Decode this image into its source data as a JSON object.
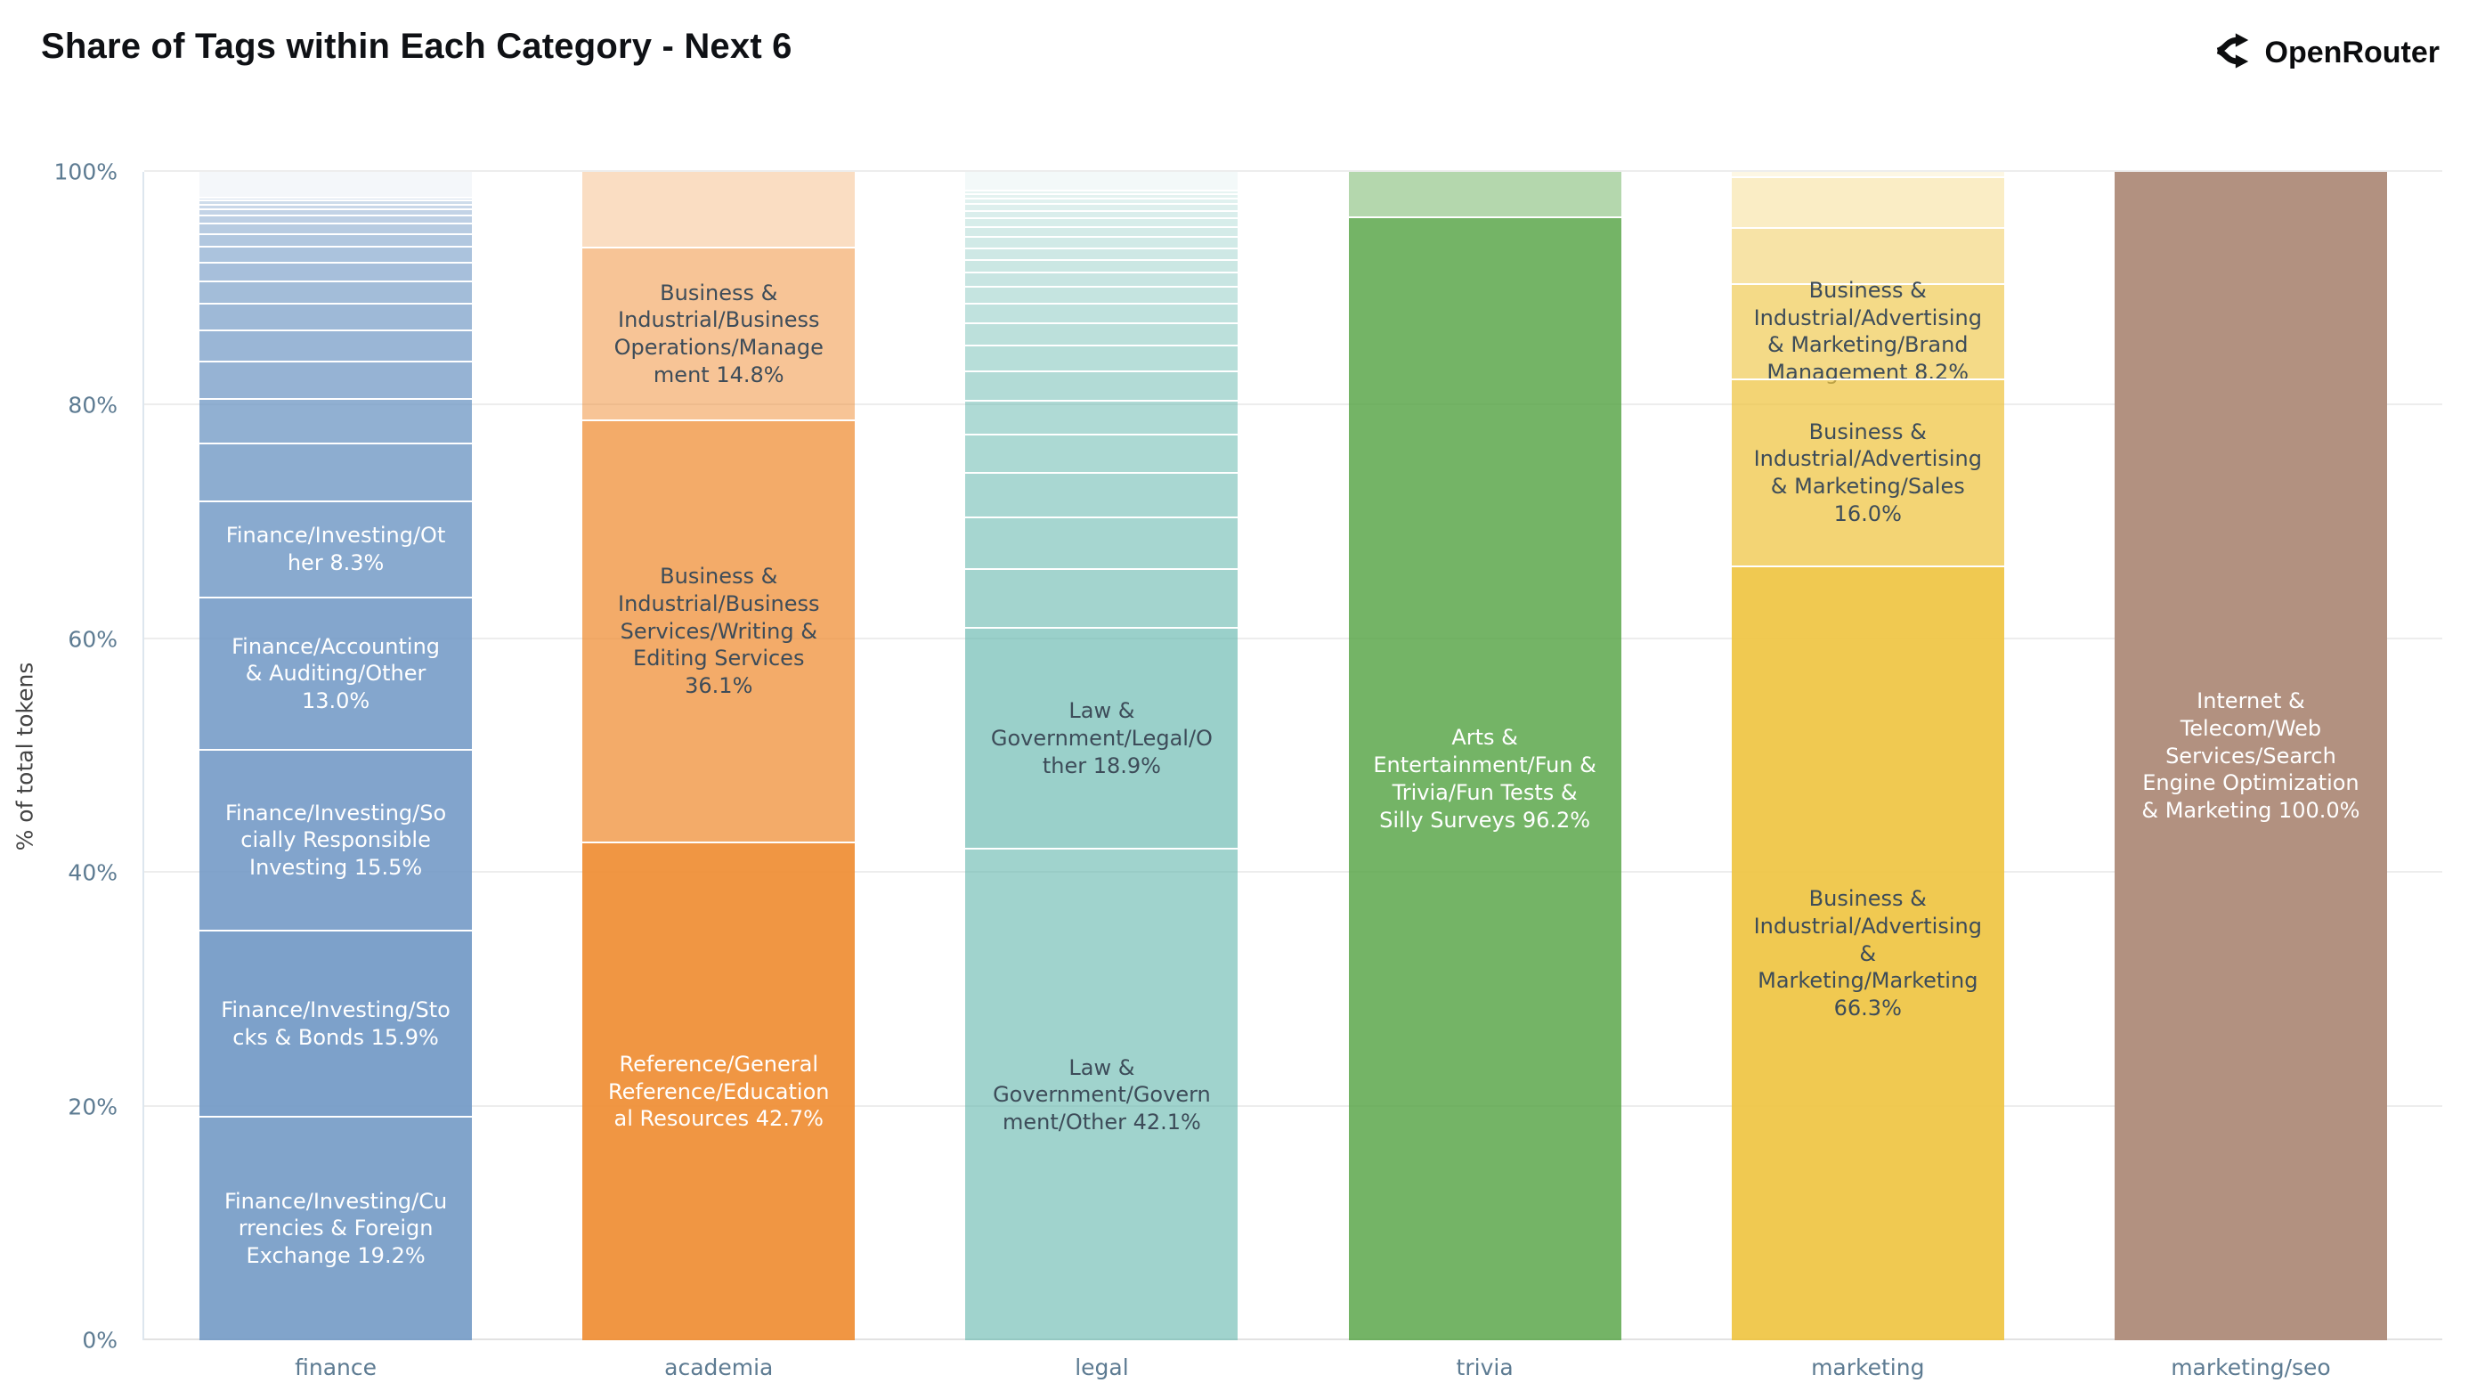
{
  "header": {
    "title": "Share of Tags within Each Category - Next 6",
    "brand": {
      "name": "OpenRouter",
      "icon": "openrouter-fork-icon"
    }
  },
  "chart_data": {
    "type": "bar",
    "variant": "stacked-100-percent",
    "title": "Share of Tags within Each Category - Next 6",
    "xlabel": "",
    "ylabel": "% of total tokens",
    "ylim": [
      0,
      100
    ],
    "yticks": [
      0,
      20,
      40,
      60,
      80,
      100
    ],
    "ytick_labels": [
      "0%",
      "20%",
      "40%",
      "60%",
      "80%",
      "100%"
    ],
    "grid": true,
    "legend_position": "none",
    "colors": {
      "axis_text": "#5d7b92",
      "axis_title": "#444444",
      "grid": "#ededed",
      "dark_label": "#3d4c59",
      "light_label": "#ffffff",
      "background": "#ffffff"
    },
    "categories": [
      "finance",
      "academia",
      "legal",
      "trivia",
      "marketing",
      "marketing/seo"
    ],
    "bars": [
      {
        "category": "finance",
        "base_color": "#6f97c4",
        "segments_top_to_bottom": [
          {
            "label": "",
            "pct": 2.1,
            "op": 0.08
          },
          {
            "label": "",
            "pct": 0.3,
            "op": 0.3
          },
          {
            "label": "",
            "pct": 0.35,
            "op": 0.34
          },
          {
            "label": "",
            "pct": 0.4,
            "op": 0.38
          },
          {
            "label": "",
            "pct": 0.5,
            "op": 0.42
          },
          {
            "label": "",
            "pct": 0.7,
            "op": 0.46
          },
          {
            "label": "",
            "pct": 0.9,
            "op": 0.5
          },
          {
            "label": "",
            "pct": 1.1,
            "op": 0.54
          },
          {
            "label": "",
            "pct": 1.35,
            "op": 0.58
          },
          {
            "label": "",
            "pct": 1.6,
            "op": 0.61
          },
          {
            "label": "",
            "pct": 1.9,
            "op": 0.64
          },
          {
            "label": "",
            "pct": 2.3,
            "op": 0.67
          },
          {
            "label": "",
            "pct": 2.7,
            "op": 0.7
          },
          {
            "label": "",
            "pct": 3.2,
            "op": 0.73
          },
          {
            "label": "",
            "pct": 3.8,
            "op": 0.76
          },
          {
            "label": "",
            "pct": 4.9,
            "op": 0.79
          },
          {
            "label": "Finance/Investing/Other 8.3%",
            "pct": 8.3,
            "op": 0.82,
            "text": "light"
          },
          {
            "label": "Finance/Accounting & Auditing/Other 13.0%",
            "pct": 13.0,
            "op": 0.85,
            "text": "light"
          },
          {
            "label": "Finance/Investing/Socially Responsible Investing 15.5%",
            "pct": 15.5,
            "op": 0.87,
            "text": "light"
          },
          {
            "label": "Finance/Investing/Stocks & Bonds 15.9%",
            "pct": 15.9,
            "op": 0.9,
            "text": "light"
          },
          {
            "label": "Finance/Investing/Currencies & Foreign Exchange 19.2%",
            "pct": 19.2,
            "op": 0.88,
            "text": "light"
          }
        ]
      },
      {
        "category": "academia",
        "base_color": "#ef8e35",
        "segments_top_to_bottom": [
          {
            "label": "",
            "pct": 6.4,
            "op": 0.3
          },
          {
            "label": "Business & Industrial/Business Operations/Management 14.8%",
            "pct": 14.8,
            "op": 0.52,
            "text": "dark"
          },
          {
            "label": "Business & Industrial/Business Services/Writing & Editing Services 36.1%",
            "pct": 36.1,
            "op": 0.74,
            "text": "dark"
          },
          {
            "label": "Reference/General Reference/Educational Resources 42.7%",
            "pct": 42.7,
            "op": 0.93,
            "text": "light"
          }
        ]
      },
      {
        "category": "legal",
        "base_color": "#66b8ae",
        "segments_top_to_bottom": [
          {
            "label": "",
            "pct": 1.5,
            "op": 0.08
          },
          {
            "label": "",
            "pct": 0.35,
            "op": 0.16
          },
          {
            "label": "",
            "pct": 0.4,
            "op": 0.18
          },
          {
            "label": "",
            "pct": 0.45,
            "op": 0.2
          },
          {
            "label": "",
            "pct": 0.55,
            "op": 0.22
          },
          {
            "label": "",
            "pct": 0.65,
            "op": 0.24
          },
          {
            "label": "",
            "pct": 0.75,
            "op": 0.26
          },
          {
            "label": "",
            "pct": 0.85,
            "op": 0.28
          },
          {
            "label": "",
            "pct": 0.95,
            "op": 0.3
          },
          {
            "label": "",
            "pct": 1.0,
            "op": 0.32
          },
          {
            "label": "",
            "pct": 1.1,
            "op": 0.34
          },
          {
            "label": "",
            "pct": 1.25,
            "op": 0.36
          },
          {
            "label": "",
            "pct": 1.45,
            "op": 0.38
          },
          {
            "label": "",
            "pct": 1.65,
            "op": 0.41
          },
          {
            "label": "",
            "pct": 1.9,
            "op": 0.44
          },
          {
            "label": "",
            "pct": 2.2,
            "op": 0.47
          },
          {
            "label": "",
            "pct": 2.5,
            "op": 0.5
          },
          {
            "label": "",
            "pct": 2.9,
            "op": 0.52
          },
          {
            "label": "",
            "pct": 3.3,
            "op": 0.54
          },
          {
            "label": "",
            "pct": 3.8,
            "op": 0.56
          },
          {
            "label": "",
            "pct": 4.4,
            "op": 0.58
          },
          {
            "label": "",
            "pct": 5.1,
            "op": 0.6
          },
          {
            "label": "Law & Government/Legal/Other 18.9%",
            "pct": 18.9,
            "op": 0.66,
            "text": "dark"
          },
          {
            "label": "Law & Government/Government/Other 42.1%",
            "pct": 42.1,
            "op": 0.62,
            "text": "dark"
          }
        ]
      },
      {
        "category": "trivia",
        "base_color": "#55a344",
        "segments_top_to_bottom": [
          {
            "label": "",
            "pct": 3.8,
            "op": 0.44
          },
          {
            "label": "Arts & Entertainment/Fun & Trivia/Fun Tests & Silly Surveys 96.2%",
            "pct": 96.2,
            "op": 0.82,
            "text": "light"
          }
        ]
      },
      {
        "category": "marketing",
        "base_color": "#eec33e",
        "segments_top_to_bottom": [
          {
            "label": "",
            "pct": 0.4,
            "op": 0.14
          },
          {
            "label": "",
            "pct": 4.3,
            "op": 0.3
          },
          {
            "label": "",
            "pct": 4.8,
            "op": 0.46
          },
          {
            "label": "Business & Industrial/Advertising & Marketing/Brand Management 8.2%",
            "pct": 8.2,
            "op": 0.62,
            "text": "dark"
          },
          {
            "label": "Business & Industrial/Advertising & Marketing/Sales 16.0%",
            "pct": 16.0,
            "op": 0.72,
            "text": "dark"
          },
          {
            "label": "Business & Industrial/Advertising & Marketing/Marketing 66.3%",
            "pct": 66.3,
            "op": 0.9,
            "text": "dark"
          }
        ]
      },
      {
        "category": "marketing/seo",
        "base_color": "#b29180",
        "segments_top_to_bottom": [
          {
            "label": "Internet & Telecom/Web Services/Search Engine Optimization & Marketing 100.0%",
            "pct": 100.0,
            "op": 1.0,
            "text": "light"
          }
        ]
      }
    ]
  }
}
